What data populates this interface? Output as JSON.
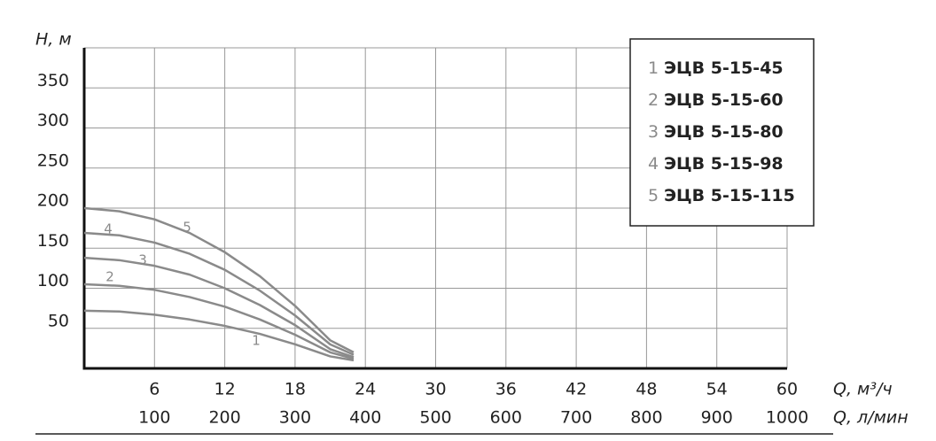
{
  "chart_data": {
    "type": "line",
    "y_label": "H, м",
    "x_label": "Q, м³/ч",
    "x2_label": "Q, л/мин",
    "x": [
      0,
      3,
      6,
      9,
      12,
      15,
      18,
      21,
      23
    ],
    "series": [
      {
        "label": "1",
        "name": "ЭЦВ 5-15-45",
        "color": "#8a8a8a",
        "values": [
          72,
          71,
          67,
          61,
          53,
          43,
          30,
          15,
          10
        ]
      },
      {
        "label": "2",
        "name": "ЭЦВ 5-15-60",
        "color": "#8a8a8a",
        "values": [
          105,
          103,
          98,
          89,
          77,
          61,
          42,
          20,
          12
        ]
      },
      {
        "label": "3",
        "name": "ЭЦВ 5-15-80",
        "color": "#8a8a8a",
        "values": [
          138,
          135,
          128,
          117,
          100,
          79,
          54,
          24,
          14
        ]
      },
      {
        "label": "4",
        "name": "ЭЦВ 5-15-98",
        "color": "#8a8a8a",
        "values": [
          169,
          166,
          157,
          143,
          123,
          97,
          66,
          30,
          17
        ]
      },
      {
        "label": "5",
        "name": "ЭЦВ 5-15-115",
        "color": "#8a8a8a",
        "values": [
          200,
          196,
          186,
          169,
          145,
          115,
          78,
          35,
          20
        ]
      }
    ],
    "xlim": [
      0,
      60
    ],
    "xticks": [
      6,
      12,
      18,
      24,
      30,
      36,
      42,
      48,
      54,
      60
    ],
    "x2lim": [
      0,
      1000
    ],
    "x2ticks": [
      100,
      200,
      300,
      400,
      500,
      600,
      700,
      800,
      900,
      1000
    ],
    "ylim": [
      0,
      400
    ],
    "yticks": [
      50,
      100,
      150,
      200,
      250,
      300,
      350
    ],
    "grid": true
  }
}
